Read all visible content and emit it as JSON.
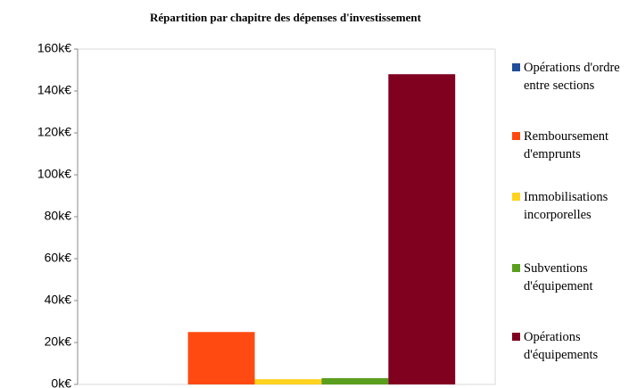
{
  "chart_data": {
    "type": "bar",
    "title": "Répartition par chapitre des dépenses d'investissement",
    "categories": [
      null
    ],
    "series": [
      {
        "name": "Opérations d'ordre entre sections",
        "color": "#1f4e9a",
        "values": [
          0
        ]
      },
      {
        "name": "Remboursement d'emprunts",
        "color": "#ff4a12",
        "values": [
          25
        ]
      },
      {
        "name": "Immobilisations incorporelles",
        "color": "#ffd21f",
        "values": [
          2.5
        ]
      },
      {
        "name": "Subventions d'équipement",
        "color": "#5a9e1e",
        "values": [
          3
        ]
      },
      {
        "name": "Opérations d'équipements",
        "color": "#800020",
        "values": [
          148
        ]
      }
    ],
    "ylim": [
      0,
      160
    ],
    "yticks": [
      {
        "value": 0,
        "label": "0k€"
      },
      {
        "value": 20,
        "label": "20k€"
      },
      {
        "value": 40,
        "label": "40k€"
      },
      {
        "value": 60,
        "label": "60k€"
      },
      {
        "value": 80,
        "label": "80k€"
      },
      {
        "value": 100,
        "label": "100k€"
      },
      {
        "value": 120,
        "label": "120k€"
      },
      {
        "value": 140,
        "label": "140k€"
      },
      {
        "value": 160,
        "label": "160k€"
      }
    ],
    "grid": false,
    "legend": "right"
  }
}
